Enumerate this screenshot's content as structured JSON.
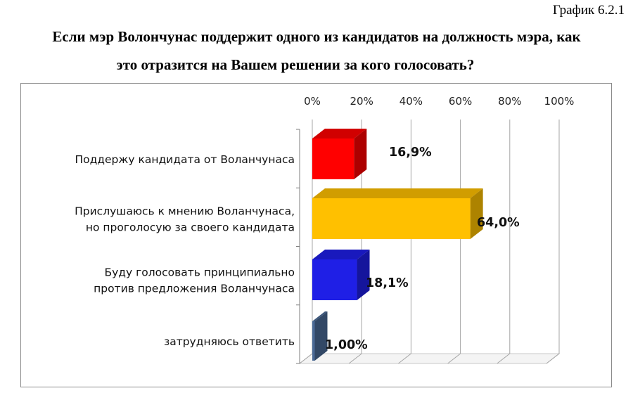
{
  "caption": "График 6.2.1",
  "title_line1": "Если мэр Волончунас поддержит одного из кандидатов на должность мэра, как",
  "title_line2": "это отразится на Вашем решении за кого голосовать?",
  "chart_data": {
    "type": "bar",
    "orientation": "horizontal",
    "three_d": true,
    "categories": [
      [
        "Поддержу кандидата от Воланчунаса"
      ],
      [
        "Прислушаюсь к мнению  Воланчунаса,",
        "но проголосую за своего кандидата"
      ],
      [
        "Буду голосовать принципиально",
        "против предложения Воланчунаса"
      ],
      [
        "затрудняюсь ответить"
      ]
    ],
    "values": [
      16.9,
      64.0,
      18.1,
      1.0
    ],
    "data_labels": [
      "16,9%",
      "64,0%",
      "18,1%",
      "1,00%"
    ],
    "colors": [
      "#ff0000",
      "#ffc000",
      "#1f1fe6",
      "#4a6a96"
    ],
    "x_ticks": [
      "0%",
      "20%",
      "40%",
      "60%",
      "80%",
      "100%"
    ],
    "xlim": [
      0,
      100
    ],
    "axis_position": "top",
    "grid": true,
    "legend": "none"
  }
}
